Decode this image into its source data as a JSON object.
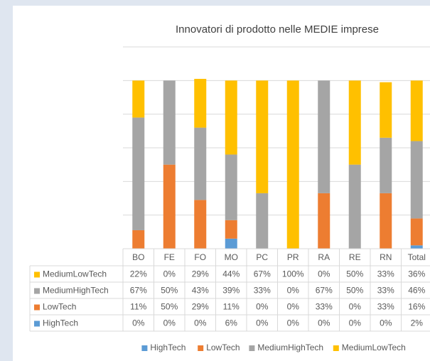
{
  "chart_data": {
    "type": "stacked_bar_100",
    "title": "Innovatori di prodotto nelle MEDIE imprese",
    "categories": [
      "BO",
      "FE",
      "FO",
      "MO",
      "PC",
      "PR",
      "RA",
      "RE",
      "RN",
      "Total"
    ],
    "series": [
      {
        "name": "HighTech",
        "color": "#5b9bd5",
        "values": [
          0,
          0,
          0,
          6,
          0,
          0,
          0,
          0,
          0,
          2
        ],
        "value_labels": [
          "0%",
          "0%",
          "0%",
          "6%",
          "0%",
          "0%",
          "0%",
          "0%",
          "0%",
          "2%"
        ]
      },
      {
        "name": "LowTech",
        "color": "#ed7d31",
        "values": [
          11,
          50,
          29,
          11,
          0,
          0,
          33,
          0,
          33,
          16
        ],
        "value_labels": [
          "11%",
          "50%",
          "29%",
          "11%",
          "0%",
          "0%",
          "33%",
          "0%",
          "33%",
          "16%"
        ]
      },
      {
        "name": "MediumHighTech",
        "color": "#a5a5a5",
        "values": [
          67,
          50,
          43,
          39,
          33,
          0,
          67,
          50,
          33,
          46
        ],
        "value_labels": [
          "67%",
          "50%",
          "43%",
          "39%",
          "33%",
          "0%",
          "67%",
          "50%",
          "33%",
          "46%"
        ]
      },
      {
        "name": "MediumLowTech",
        "color": "#ffc000",
        "values": [
          22,
          0,
          29,
          44,
          67,
          100,
          0,
          50,
          33,
          36
        ],
        "value_labels": [
          "22%",
          "0%",
          "29%",
          "44%",
          "67%",
          "100%",
          "0%",
          "50%",
          "33%",
          "36%"
        ]
      }
    ],
    "ylim": [
      0,
      120
    ],
    "yticks": [
      0,
      20,
      40,
      60,
      80,
      100,
      120
    ],
    "grid": true,
    "legend": "bottom"
  }
}
